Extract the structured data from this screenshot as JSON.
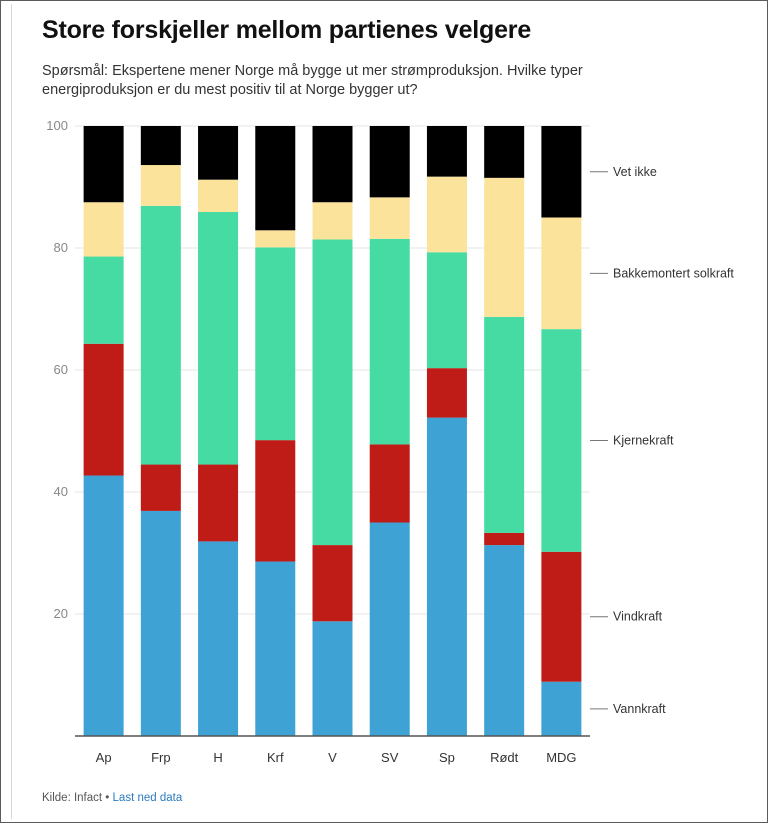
{
  "header": {
    "title": "Store forskjeller mellom partienes velgere",
    "subtitle": "Spørsmål: Ekspertene mener Norge må bygge ut mer strømproduksjon. Hvilke typer energiproduksjon er du mest positiv til at Norge bygger ut?"
  },
  "footer": {
    "source_label": "Kilde: Infact",
    "separator": "•",
    "download_link": "Last ned data"
  },
  "chart_data": {
    "type": "bar",
    "stacked": true,
    "categories": [
      "Ap",
      "Frp",
      "H",
      "Krf",
      "V",
      "SV",
      "Sp",
      "Rødt",
      "MDG"
    ],
    "ylim": [
      0,
      100
    ],
    "yticks": [
      20,
      40,
      60,
      80,
      100
    ],
    "grid": true,
    "legend_placement": "right",
    "series": [
      {
        "name": "Vannkraft",
        "color": "#3ea3d4",
        "values": [
          42.7,
          36.9,
          31.9,
          28.6,
          18.8,
          35.0,
          52.2,
          31.3,
          8.9
        ]
      },
      {
        "name": "Vindkraft",
        "color": "#bf1b17",
        "values": [
          21.6,
          7.6,
          12.6,
          19.9,
          12.5,
          12.8,
          8.1,
          2.0,
          21.3
        ]
      },
      {
        "name": "Kjernekraft",
        "color": "#45dba3",
        "values": [
          14.3,
          42.4,
          41.4,
          31.6,
          50.1,
          33.7,
          19.0,
          35.4,
          36.5
        ]
      },
      {
        "name": "Bakkemontert solkraft",
        "color": "#fce39b",
        "values": [
          8.9,
          6.7,
          5.3,
          2.8,
          6.1,
          6.8,
          12.4,
          22.8,
          18.3
        ]
      },
      {
        "name": "Vet ikke",
        "color": "#000000",
        "values": [
          12.5,
          6.4,
          8.8,
          17.1,
          12.5,
          11.7,
          8.3,
          8.5,
          15.0
        ]
      }
    ]
  }
}
